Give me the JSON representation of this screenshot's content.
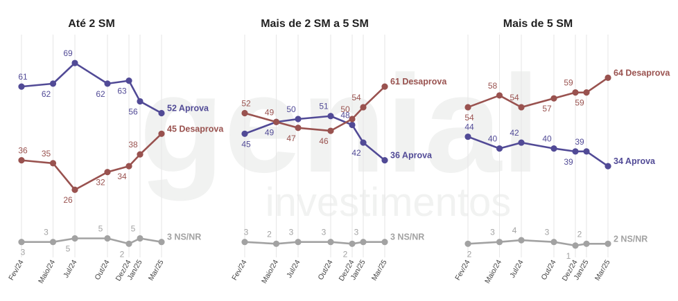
{
  "colors": {
    "aprova": "#514a96",
    "desaprova": "#99524f",
    "nsnr": "#a2a2a2",
    "grid": "#e6e6e6",
    "watermark": "#f1f2f1",
    "title": "#222222"
  },
  "watermark": {
    "brand": "genial",
    "sub": "investimentos"
  },
  "chart_data": [
    {
      "type": "line",
      "title": "Até 2 SM",
      "categories": [
        "Fev/24",
        "Maio/24",
        "Jul/24",
        "Out/24",
        "Dez/24",
        "Jan/25",
        "Mar/25"
      ],
      "series": [
        {
          "key": "aprova",
          "values": [
            61,
            62,
            69,
            62,
            63,
            56,
            52
          ],
          "end_label": "52 Aprova"
        },
        {
          "key": "desaprova",
          "values": [
            36,
            35,
            26,
            32,
            34,
            38,
            45
          ],
          "end_label": "45 Desaprova"
        },
        {
          "key": "nsnr",
          "values": [
            3,
            3,
            5,
            5,
            2,
            5,
            3
          ],
          "end_label": "3 NS/NR"
        }
      ]
    },
    {
      "type": "line",
      "title": "Mais de 2 SM a 5 SM",
      "categories": [
        "Fev/24",
        "Maio/24",
        "Jul/24",
        "Out/24",
        "Dez/24",
        "Jan/25",
        "Mar/25"
      ],
      "series": [
        {
          "key": "aprova",
          "values": [
            45,
            49,
            50,
            51,
            48,
            42,
            36
          ],
          "end_label": "36 Aprova"
        },
        {
          "key": "desaprova",
          "values": [
            52,
            49,
            47,
            46,
            50,
            54,
            61
          ],
          "end_label": "61 Desaprova"
        },
        {
          "key": "nsnr",
          "values": [
            3,
            2,
            3,
            3,
            2,
            3,
            3
          ],
          "end_label": "3 NS/NR"
        }
      ]
    },
    {
      "type": "line",
      "title": "Mais de 5 SM",
      "categories": [
        "Fev/24",
        "Maio/24",
        "Jul/24",
        "Out/24",
        "Dez/24",
        "Jan/25",
        "Mar/25"
      ],
      "series": [
        {
          "key": "aprova",
          "values": [
            44,
            40,
            42,
            40,
            39,
            39,
            34
          ],
          "end_label": "34 Aprova"
        },
        {
          "key": "desaprova",
          "values": [
            54,
            58,
            54,
            57,
            59,
            59,
            64
          ],
          "end_label": "64 Desaprova"
        },
        {
          "key": "nsnr",
          "values": [
            2,
            3,
            4,
            3,
            1,
            2,
            2
          ],
          "end_label": "2 NS/NR"
        }
      ]
    }
  ]
}
